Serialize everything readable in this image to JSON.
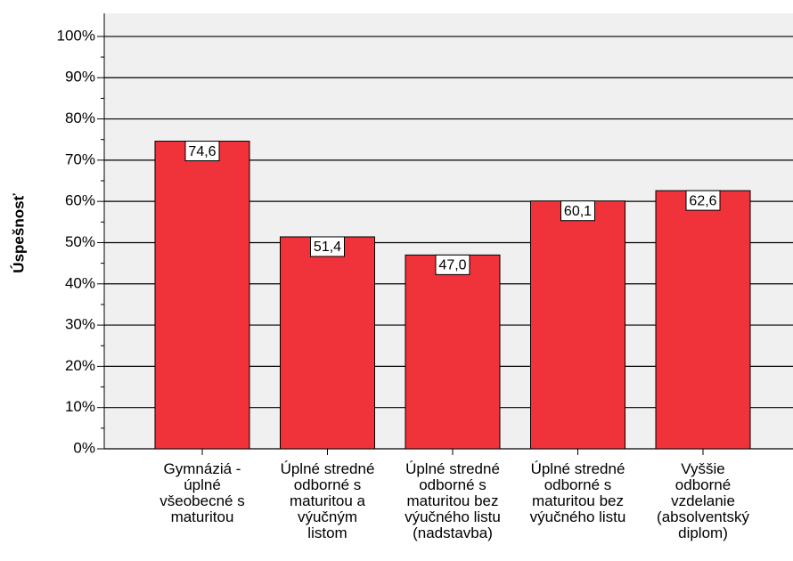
{
  "chart_data": {
    "type": "bar",
    "y_label": "Úspešnosť",
    "categories": [
      "Gymnáziá -\núplné\nvšeobecné s\nmaturitou",
      "Úplné stredné\nodborné s\nmaturitou a\nvýučným\nlistom",
      "Úplné stredné\nodborné s\nmaturitou bez\nvýučného listu\n(nadstavba)",
      "Úplné stredné\nodborné s\nmaturitou bez\nvýučného listu",
      "Vyššie\nodborné\nvzdelanie\n(absolventský\ndiplom)"
    ],
    "values": [
      74.6,
      51.4,
      47.0,
      60.1,
      62.6
    ],
    "value_labels": [
      "74,6",
      "51,4",
      "47,0",
      "60,1",
      "62,6"
    ],
    "color": "#f0323a",
    "ylim": [
      0,
      105.6
    ],
    "yticks": [
      {
        "value": 0,
        "label": "0%"
      },
      {
        "value": 10,
        "label": "10%"
      },
      {
        "value": 20,
        "label": "20%"
      },
      {
        "value": 30,
        "label": "30%"
      },
      {
        "value": 40,
        "label": "40%"
      },
      {
        "value": 50,
        "label": "50%"
      },
      {
        "value": 60,
        "label": "60%"
      },
      {
        "value": 70,
        "label": "70%"
      },
      {
        "value": 80,
        "label": "80%"
      },
      {
        "value": 90,
        "label": "90%"
      },
      {
        "value": 100,
        "label": "100%"
      }
    ],
    "grid": true
  }
}
